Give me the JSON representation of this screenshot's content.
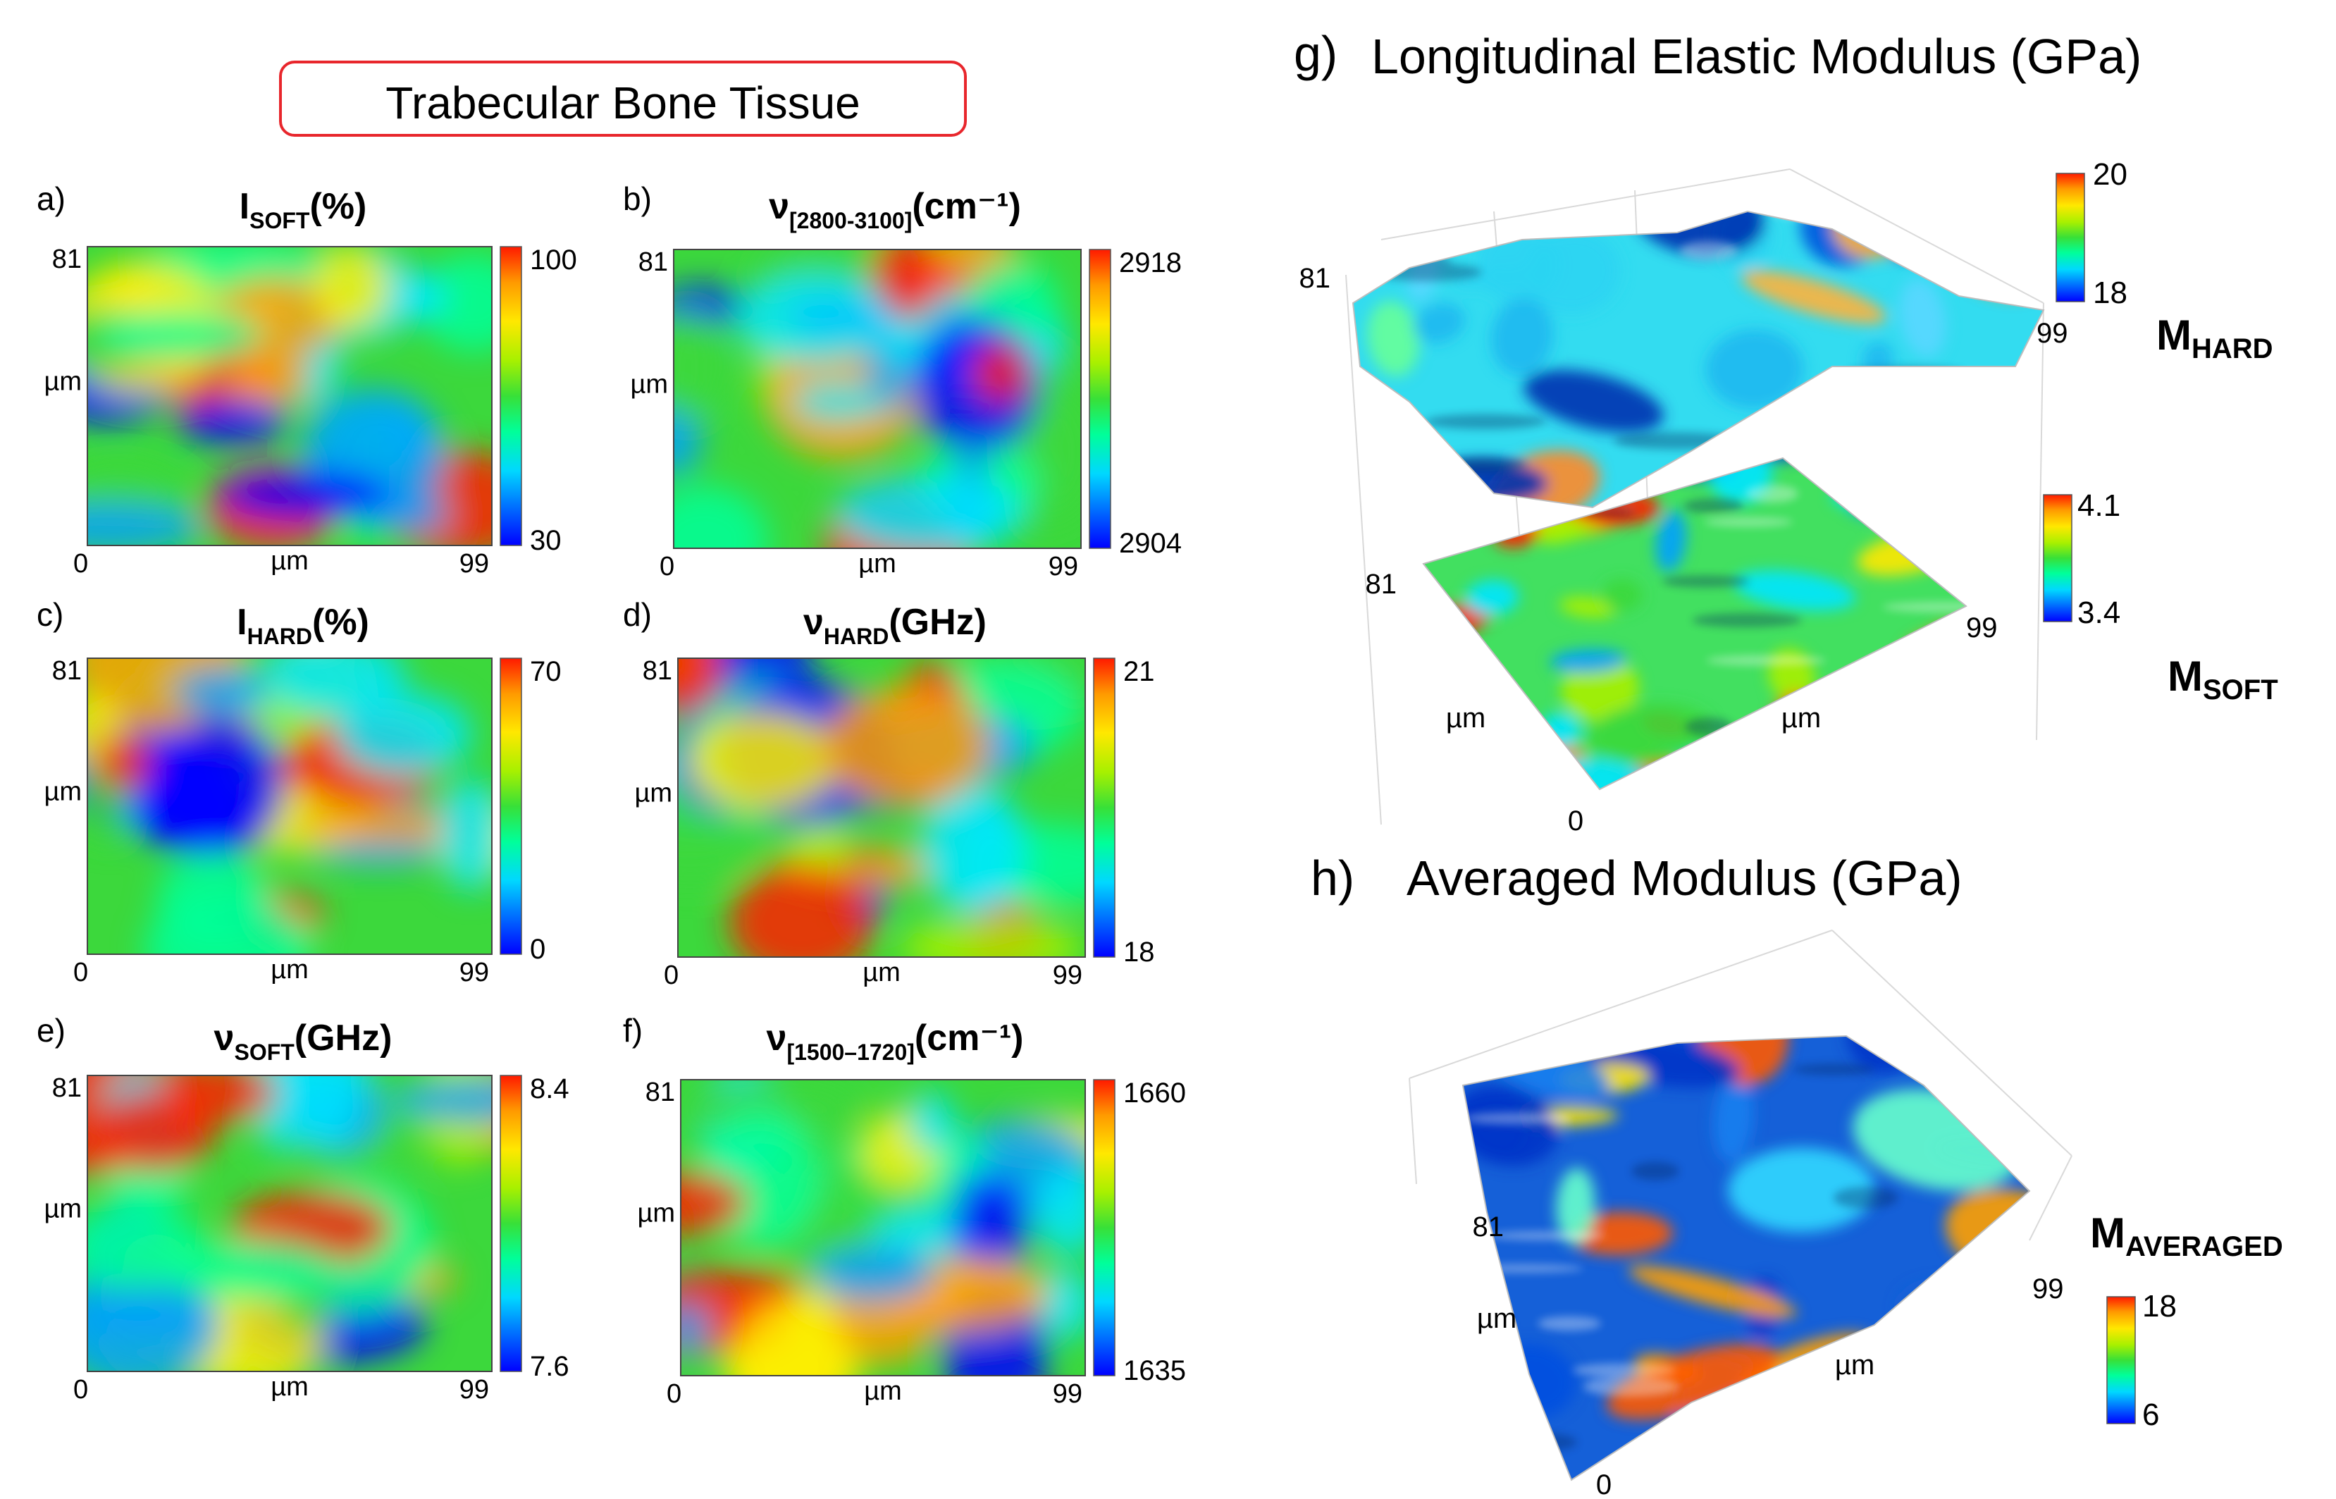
{
  "header": {
    "title": "Trabecular Bone Tissue"
  },
  "colors": {
    "frame": "#e8262c",
    "cmap": [
      "#0000ff",
      "#00a0ff",
      "#00e6ff",
      "#00ff9a",
      "#3cd83c",
      "#a8f000",
      "#ffee00",
      "#ffa000",
      "#ff2000"
    ]
  },
  "chart_data": [
    {
      "type": "heatmap",
      "letter": "a)",
      "title": "I",
      "title_sub": "SOFT",
      "title_tail": "(%)",
      "xlabel": "µm",
      "ylabel": "µm",
      "xlim": [
        0,
        99
      ],
      "ylim": [
        0,
        81
      ],
      "x_ticks": [
        "0",
        "99"
      ],
      "y_ticks": [
        "81"
      ],
      "colorbar": {
        "min": "30",
        "max": "100"
      }
    },
    {
      "type": "heatmap",
      "letter": "b)",
      "title": "ν",
      "title_sub": "[2800-3100]",
      "title_tail": "(cm⁻¹)",
      "xlabel": "µm",
      "ylabel": "µm",
      "xlim": [
        0,
        99
      ],
      "ylim": [
        0,
        81
      ],
      "x_ticks": [
        "0",
        "99"
      ],
      "y_ticks": [
        "81"
      ],
      "colorbar": {
        "min": "2904",
        "max": "2918"
      }
    },
    {
      "type": "heatmap",
      "letter": "c)",
      "title": "I",
      "title_sub": "HARD",
      "title_tail": "(%)",
      "xlabel": "µm",
      "ylabel": "µm",
      "xlim": [
        0,
        99
      ],
      "ylim": [
        0,
        81
      ],
      "x_ticks": [
        "0",
        "99"
      ],
      "y_ticks": [
        "81"
      ],
      "colorbar": {
        "min": "0",
        "max": "70"
      }
    },
    {
      "type": "heatmap",
      "letter": "d)",
      "title": "ν",
      "title_sub": "HARD",
      "title_tail": "(GHz)",
      "xlabel": "µm",
      "ylabel": "µm",
      "xlim": [
        0,
        99
      ],
      "ylim": [
        0,
        81
      ],
      "x_ticks": [
        "0",
        "99"
      ],
      "y_ticks": [
        "81"
      ],
      "colorbar": {
        "min": "18",
        "max": "21"
      }
    },
    {
      "type": "heatmap",
      "letter": "e)",
      "title": "ν",
      "title_sub": "SOFT",
      "title_tail": "(GHz)",
      "xlabel": "µm",
      "ylabel": "µm",
      "xlim": [
        0,
        99
      ],
      "ylim": [
        0,
        81
      ],
      "x_ticks": [
        "0",
        "99"
      ],
      "y_ticks": [
        "81"
      ],
      "colorbar": {
        "min": "7.6",
        "max": "8.4"
      }
    },
    {
      "type": "heatmap",
      "letter": "f)",
      "title": "ν",
      "title_sub": "[1500–1720]",
      "title_tail": "(cm⁻¹)",
      "xlabel": "µm",
      "ylabel": "µm",
      "xlim": [
        0,
        99
      ],
      "ylim": [
        0,
        81
      ],
      "x_ticks": [
        "0",
        "99"
      ],
      "y_ticks": [
        "81"
      ],
      "colorbar": {
        "min": "1635",
        "max": "1660"
      }
    },
    {
      "type": "surface3d",
      "letter": "g)",
      "title": "Longitudinal Elastic Modulus (GPa)",
      "surfaces": [
        {
          "name": "M",
          "name_sub": "HARD",
          "colorbar": {
            "min": "18",
            "max": "20"
          }
        },
        {
          "name": "M",
          "name_sub": "SOFT",
          "colorbar": {
            "min": "3.4",
            "max": "4.1"
          }
        }
      ],
      "axes": {
        "x_label": "µm",
        "y_label": "µm",
        "x_max": "99",
        "y_max": "81",
        "origin": "0"
      }
    },
    {
      "type": "surface3d",
      "letter": "h)",
      "title": "Averaged Modulus (GPa)",
      "surfaces": [
        {
          "name": "M",
          "name_sub": "AVERAGED",
          "colorbar": {
            "min": "6",
            "max": "18"
          }
        }
      ],
      "axes": {
        "x_label": "µm",
        "y_label": "µm",
        "x_max": "99",
        "y_max": "81",
        "origin": "0"
      }
    }
  ]
}
